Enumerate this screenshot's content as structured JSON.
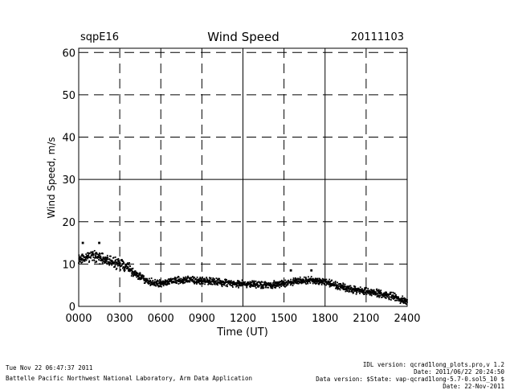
{
  "chart_data": {
    "type": "scatter",
    "title": "Wind Speed",
    "site_label": "sqpE16",
    "date_label": "20111103",
    "xlabel": "Time (UT)",
    "ylabel": "Wind Speed, m/s",
    "xlim": [
      0,
      24
    ],
    "ylim": [
      0,
      61
    ],
    "x_ticks": [
      0,
      3,
      6,
      9,
      12,
      15,
      18,
      21,
      24
    ],
    "x_tick_labels": [
      "0000",
      "0300",
      "0600",
      "0900",
      "1200",
      "1500",
      "1800",
      "2100",
      "2400"
    ],
    "y_ticks": [
      0,
      10,
      20,
      30,
      40,
      50,
      60
    ],
    "y_tick_labels": [
      "0",
      "10",
      "20",
      "30",
      "40",
      "50",
      "60"
    ],
    "solid_vlines": [
      12,
      18
    ],
    "solid_hlines": [
      30
    ],
    "grid": true,
    "series": [
      {
        "name": "Wind Speed",
        "trend": [
          [
            0.0,
            11.0
          ],
          [
            0.5,
            11.5
          ],
          [
            1.0,
            12.0
          ],
          [
            1.5,
            11.5
          ],
          [
            2.0,
            11.0
          ],
          [
            2.5,
            10.5
          ],
          [
            3.0,
            10.0
          ],
          [
            3.5,
            9.5
          ],
          [
            4.0,
            8.0
          ],
          [
            4.5,
            7.0
          ],
          [
            5.0,
            6.0
          ],
          [
            5.5,
            5.5
          ],
          [
            6.0,
            5.5
          ],
          [
            7.0,
            6.0
          ],
          [
            8.0,
            6.3
          ],
          [
            9.0,
            6.0
          ],
          [
            10.0,
            5.8
          ],
          [
            11.0,
            5.5
          ],
          [
            12.0,
            5.3
          ],
          [
            13.0,
            5.2
          ],
          [
            14.0,
            5.0
          ],
          [
            15.0,
            5.5
          ],
          [
            16.0,
            6.0
          ],
          [
            17.0,
            6.2
          ],
          [
            18.0,
            5.8
          ],
          [
            19.0,
            4.8
          ],
          [
            20.0,
            4.0
          ],
          [
            21.0,
            3.5
          ],
          [
            22.0,
            3.0
          ],
          [
            23.0,
            2.3
          ],
          [
            23.5,
            1.5
          ],
          [
            24.0,
            1.3
          ]
        ],
        "highlights": [
          [
            0.3,
            15.0
          ],
          [
            1.5,
            15.0
          ],
          [
            15.5,
            8.5
          ],
          [
            17.0,
            8.5
          ]
        ]
      }
    ]
  },
  "footer": {
    "left_line1": "Tue Nov 22 06:47:37 2011",
    "left_line2": "Battelle Pacific Northwest National Laboratory, Arm Data Application",
    "right_line1": "IDL version: qcrad1long_plots.pro,v 1.2",
    "right_line2": "Date: 2011/06/22 20:24:50",
    "right_line3": "Data version: $State: vap-qcrad1long-5.7-0.sol5_10 $",
    "right_line4": "Date: 22-Nov-2011"
  }
}
